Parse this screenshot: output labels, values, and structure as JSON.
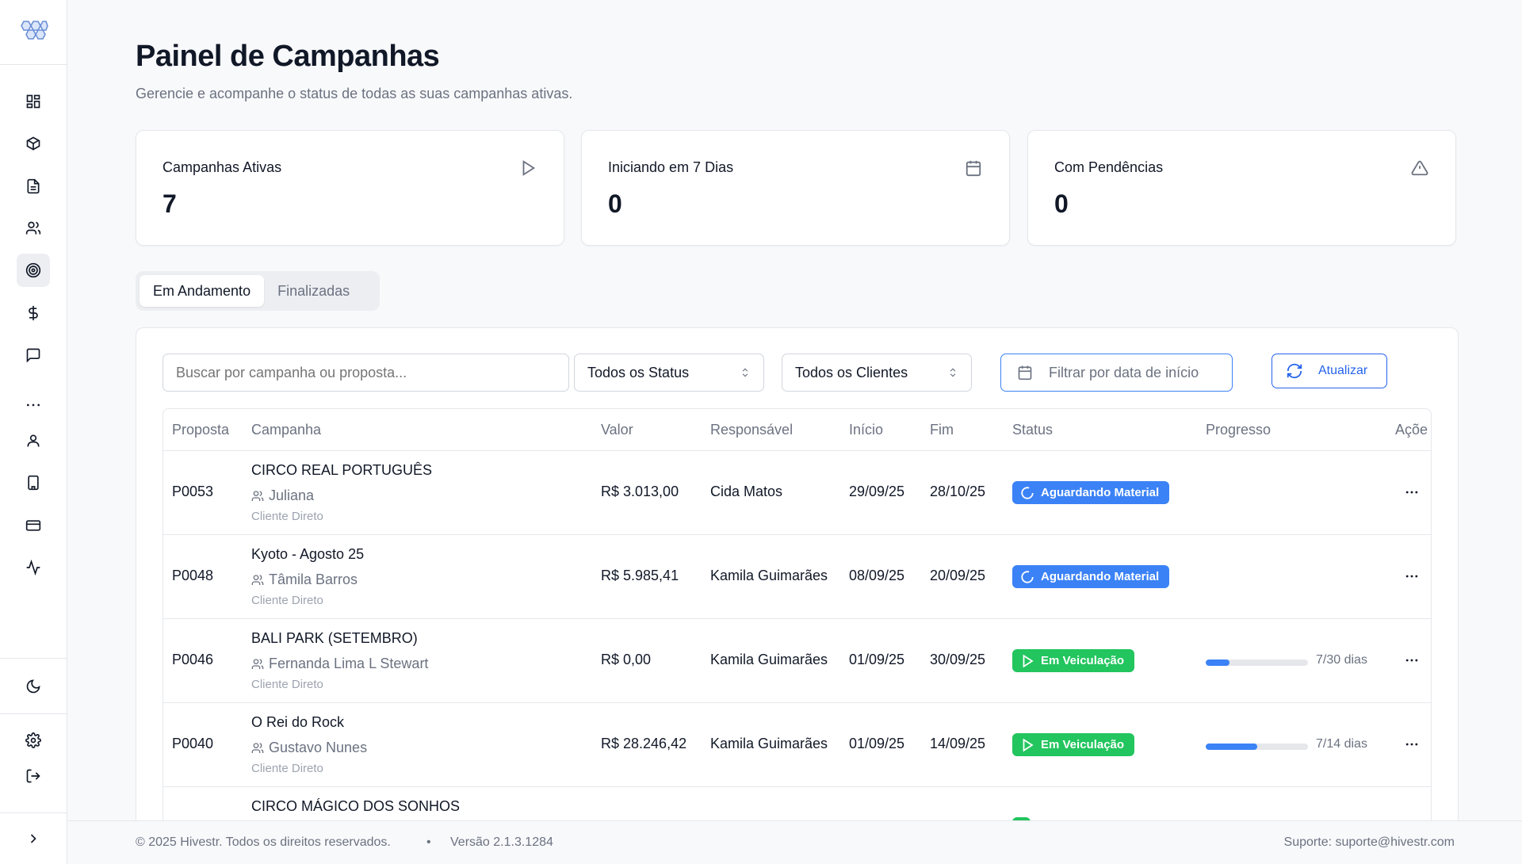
{
  "colors": {
    "accent": "#3b82f6",
    "success": "#22c55e",
    "text": "#111827",
    "muted": "#6b7280"
  },
  "sidebar": {
    "logo": "hexagon-logo-icon",
    "items": [
      {
        "icon": "dashboard-icon"
      },
      {
        "icon": "box-icon"
      },
      {
        "icon": "document-icon"
      },
      {
        "icon": "users-icon"
      },
      {
        "icon": "target-icon",
        "active": true
      },
      {
        "icon": "dollar-icon"
      },
      {
        "icon": "message-icon"
      },
      {
        "icon": "more-horizontal-icon"
      },
      {
        "icon": "user-icon"
      },
      {
        "icon": "building-icon"
      },
      {
        "icon": "credit-card-icon"
      },
      {
        "icon": "activity-icon"
      },
      {
        "icon": "moon-icon"
      },
      {
        "icon": "settings-icon"
      },
      {
        "icon": "logout-icon"
      },
      {
        "icon": "chevron-right-icon"
      }
    ]
  },
  "header": {
    "title": "Painel de Campanhas",
    "subtitle": "Gerencie e acompanhe o status de todas as suas campanhas ativas."
  },
  "stats": [
    {
      "label": "Campanhas Ativas",
      "value": "7",
      "icon": "play-icon"
    },
    {
      "label": "Iniciando em 7 Dias",
      "value": "0",
      "icon": "calendar-icon"
    },
    {
      "label": "Com Pendências",
      "value": "0",
      "icon": "alert-triangle-icon"
    }
  ],
  "tabs": [
    {
      "label": "Em Andamento",
      "active": true
    },
    {
      "label": "Finalizadas",
      "active": false
    }
  ],
  "filters": {
    "search_placeholder": "Buscar por campanha ou proposta...",
    "status_value": "Todos os Status",
    "client_value": "Todos os Clientes",
    "date_placeholder": "Filtrar por data de início",
    "refresh_label": "Atualizar"
  },
  "table": {
    "columns": [
      "Proposta",
      "Campanha",
      "Valor",
      "Responsável",
      "Início",
      "Fim",
      "Status",
      "Progresso",
      "Açõe"
    ],
    "rows": [
      {
        "proposta": "P0053",
        "campanha": "CIRCO REAL PORTUGUÊS",
        "cliente": "Juliana",
        "tipo": "Cliente Direto",
        "valor": "R$ 3.013,00",
        "responsavel": "Cida Matos",
        "inicio": "29/09/25",
        "fim": "28/10/25",
        "status": "Aguardando Material",
        "status_color": "blue",
        "progress_text": "",
        "progress_fraction": null
      },
      {
        "proposta": "P0048",
        "campanha": "Kyoto - Agosto 25",
        "cliente": "Tâmila Barros",
        "tipo": "Cliente Direto",
        "valor": "R$ 5.985,41",
        "responsavel": "Kamila Guimarães",
        "inicio": "08/09/25",
        "fim": "20/09/25",
        "status": "Aguardando Material",
        "status_color": "blue",
        "progress_text": "",
        "progress_fraction": null
      },
      {
        "proposta": "P0046",
        "campanha": "BALI PARK (SETEMBRO)",
        "cliente": "Fernanda Lima L Stewart",
        "tipo": "Cliente Direto",
        "valor": "R$ 0,00",
        "responsavel": "Kamila Guimarães",
        "inicio": "01/09/25",
        "fim": "30/09/25",
        "status": "Em Veiculação",
        "status_color": "green",
        "progress_text": "7/30 dias",
        "progress_fraction": 0.2333
      },
      {
        "proposta": "P0040",
        "campanha": "O Rei do Rock",
        "cliente": "Gustavo Nunes",
        "tipo": "Cliente Direto",
        "valor": "R$ 28.246,42",
        "responsavel": "Kamila Guimarães",
        "inicio": "01/09/25",
        "fim": "14/09/25",
        "status": "Em Veiculação",
        "status_color": "green",
        "progress_text": "7/14 dias",
        "progress_fraction": 0.5
      },
      {
        "proposta": "",
        "campanha": "CIRCO MÁGICO DOS SONHOS",
        "cliente": "",
        "tipo": "",
        "valor": "",
        "responsavel": "",
        "inicio": "",
        "fim": "",
        "status": "",
        "status_color": "green",
        "progress_text": "",
        "progress_fraction": null
      }
    ]
  },
  "footer": {
    "copyright": "© 2025 Hivestr. Todos os direitos reservados.",
    "separator": "•",
    "version": "Versão 2.1.3.1284",
    "support": "Suporte: suporte@hivestr.com"
  }
}
